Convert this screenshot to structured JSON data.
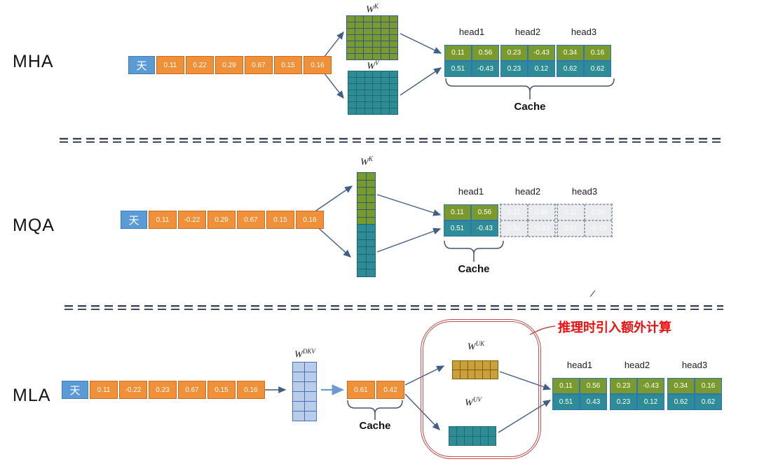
{
  "colors": {
    "token_fill": "#5b9bd5",
    "token_border": "#3f7cb8",
    "vec_fill": "#f0913a",
    "vec_border": "#cd6a1d",
    "head_top": "#7a9a2e",
    "head_bottom": "#2e8c96",
    "head_border": "#2e75b6",
    "ghost_fill": "#eaecef",
    "ghost_border": "#98a0a8",
    "arrow": "#3e5f8a",
    "arrow_light": "#6b9bd2",
    "brace": "#44546a",
    "red_box": "#c0504d",
    "note_red": "#f20d0d",
    "divider": "#3f4a5c"
  },
  "sections": {
    "mha": {
      "label": "MHA",
      "token": "天",
      "vector": [
        "0.11",
        "0.22",
        "0.29",
        "0.67",
        "0.15",
        "0.16"
      ],
      "weights": {
        "wk": {
          "base": "W",
          "sup": "K",
          "cols": 6,
          "rows": 7,
          "fill": "#7a9a2e",
          "line": "#2f5a8f"
        },
        "wv": {
          "base": "W",
          "sup": "V",
          "cols": 6,
          "rows": 7,
          "fill": "#2e8c96",
          "line": "#1e6b74"
        }
      },
      "heads": [
        {
          "name": "head1",
          "rows": [
            [
              "0.11",
              "0.56"
            ],
            [
              "0.51",
              "-0.43"
            ]
          ],
          "ghost": false
        },
        {
          "name": "head2",
          "rows": [
            [
              "0.23",
              "-0.43"
            ],
            [
              "0.23",
              "0.12"
            ]
          ],
          "ghost": false
        },
        {
          "name": "head3",
          "rows": [
            [
              "0.34",
              "0.16"
            ],
            [
              "0.62",
              "0.62"
            ]
          ],
          "ghost": false
        }
      ],
      "cache_label": "Cache"
    },
    "mqa": {
      "label": "MQA",
      "token": "天",
      "vector": [
        "0.11",
        "-0.22",
        "0.29",
        "0.67",
        "0.15",
        "0.16"
      ],
      "weights": {
        "wk": {
          "base": "W",
          "sup": "K",
          "cols": 2,
          "rows": 14,
          "split": 7,
          "fill": "#7a9a2e",
          "fill2": "#2e8c96",
          "line": "#23607a"
        }
      },
      "heads": [
        {
          "name": "head1",
          "rows": [
            [
              "0.11",
              "0.56"
            ],
            [
              "0.51",
              "-0.43"
            ]
          ],
          "ghost": false
        },
        {
          "name": "head2",
          "rows": [
            [
              "0.11",
              "0.56"
            ],
            [
              "0.51",
              "-0.43"
            ]
          ],
          "ghost": true
        },
        {
          "name": "head3",
          "rows": [
            [
              "0.11",
              "0.56"
            ],
            [
              "0.51",
              "-0.43"
            ]
          ],
          "ghost": true
        }
      ],
      "cache_label": "Cache"
    },
    "mla": {
      "label": "MLA",
      "token": "天",
      "vector": [
        "0.11",
        "-0.22",
        "0.23",
        "0.67",
        "0.15",
        "0.16"
      ],
      "latent": [
        "0.61",
        "0.42"
      ],
      "weights": {
        "wdkv": {
          "base": "W",
          "sup": "DKV",
          "cols": 2,
          "rows": 6,
          "fill": "#b9cce8",
          "line": "#4472c4"
        },
        "wuk": {
          "base": "W",
          "sup": "UK",
          "cols": 6,
          "rows": 2,
          "fill": "#c9a03a",
          "line": "#7f6000"
        },
        "wuv": {
          "base": "W",
          "sup": "UV",
          "cols": 6,
          "rows": 2,
          "fill": "#2e8c96",
          "line": "#1e6b74"
        }
      },
      "heads": [
        {
          "name": "head1",
          "rows": [
            [
              "0.11",
              "0.56"
            ],
            [
              "0.51",
              "0.43"
            ]
          ],
          "ghost": false
        },
        {
          "name": "head2",
          "rows": [
            [
              "0.23",
              "-0.43"
            ],
            [
              "0.23",
              "0.12"
            ]
          ],
          "ghost": false
        },
        {
          "name": "head3",
          "rows": [
            [
              "0.34",
              "0.16"
            ],
            [
              "0.62",
              "0.62"
            ]
          ],
          "ghost": false
        }
      ],
      "cache_label": "Cache",
      "note": "推理时引入额外计算"
    }
  }
}
